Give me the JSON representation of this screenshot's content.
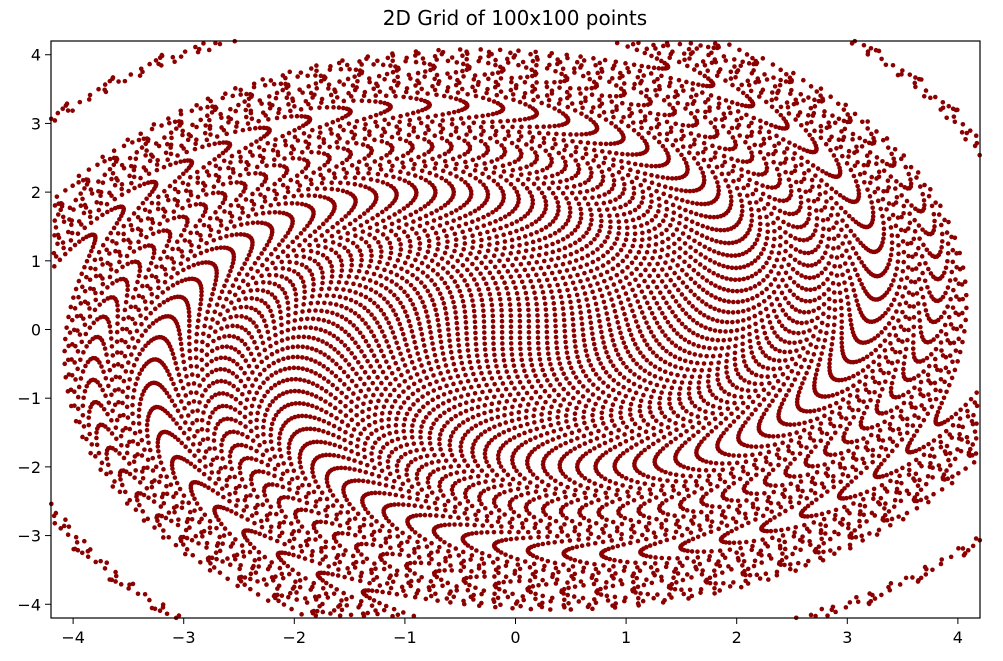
{
  "chart_data": {
    "type": "scatter",
    "title": "2D Grid of 100x100 points",
    "xlabel": "",
    "ylabel": "",
    "xlim": [
      -4.2,
      4.2
    ],
    "ylim": [
      -4.2,
      4.2
    ],
    "xticks": [
      -4,
      -3,
      -2,
      -1,
      0,
      1,
      2,
      3,
      4
    ],
    "yticks": [
      -4,
      -3,
      -2,
      -1,
      0,
      1,
      2,
      3,
      4
    ],
    "xtick_labels": [
      "−4",
      "−3",
      "−2",
      "−1",
      "0",
      "1",
      "2",
      "3",
      "4"
    ],
    "ytick_labels": [
      "−4",
      "−3",
      "−2",
      "−1",
      "0",
      "1",
      "2",
      "3",
      "4"
    ],
    "grid": false,
    "legend": "none",
    "marker_color": "#8b0000",
    "grid_points": {
      "n_x": 100,
      "n_y": 100,
      "x_range": [
        -4,
        4
      ],
      "y_range": [
        -4,
        4
      ]
    },
    "transform": "each grid point (x, y) is rotated about the origin by an angle proportional to its distance from the center, forming a vortex/bow-tie pattern; the densest cluster lies near (0, 0)"
  }
}
